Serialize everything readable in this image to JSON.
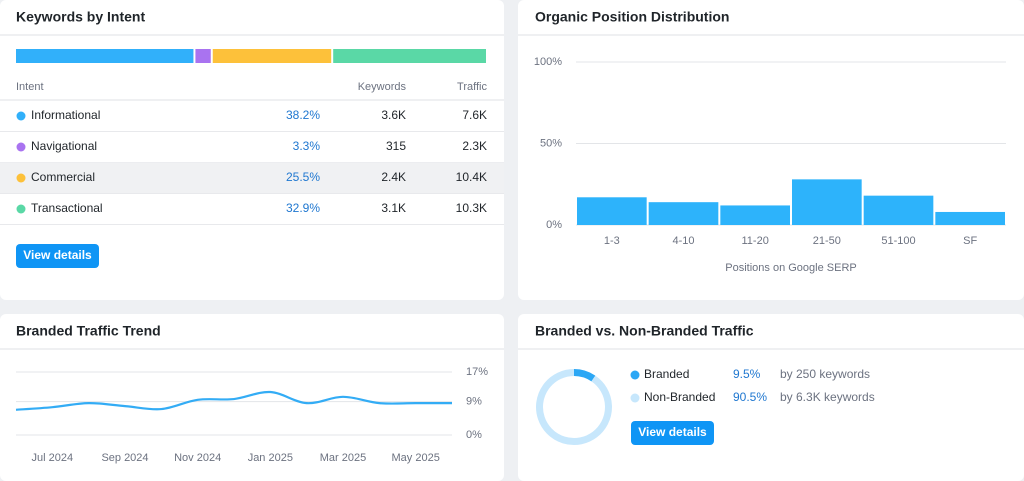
{
  "intent_panel": {
    "title": "Keywords by Intent",
    "columns": [
      "Intent",
      "Keywords",
      "Traffic"
    ],
    "rows": [
      {
        "name": "Informational",
        "color": "#31b0fa",
        "share": 38.2,
        "share_label": "38.2%",
        "keywords": "3.6K",
        "traffic": "7.6K"
      },
      {
        "name": "Navigational",
        "color": "#a973f0",
        "share": 3.3,
        "share_label": "3.3%",
        "keywords": "315",
        "traffic": "2.3K"
      },
      {
        "name": "Commercial",
        "color": "#fdc13a",
        "share": 25.5,
        "share_label": "25.5%",
        "keywords": "2.4K",
        "traffic": "10.4K"
      },
      {
        "name": "Transactional",
        "color": "#5ad8a6",
        "share": 32.9,
        "share_label": "32.9%",
        "keywords": "3.1K",
        "traffic": "10.3K"
      }
    ],
    "button": "View details"
  },
  "chart_data": [
    {
      "type": "bar",
      "title": "Organic Position Distribution",
      "categories": [
        "1-3",
        "4-10",
        "11-20",
        "21-50",
        "51-100",
        "SF"
      ],
      "values": [
        17,
        14,
        12,
        28,
        18,
        8
      ],
      "color": "#2db3fb",
      "ylim": [
        0,
        100
      ],
      "yticks": [
        {
          "value": 0,
          "label": "0%"
        },
        {
          "value": 50,
          "label": "50%"
        },
        {
          "value": 100,
          "label": "100%"
        }
      ],
      "xlabel": "Positions on Google SERP",
      "grid": true
    },
    {
      "type": "line",
      "title": "Branded Traffic Trend",
      "categories": [
        null,
        "Jul 2024",
        null,
        "Sep 2024",
        null,
        "Nov 2024",
        null,
        "Jan 2025",
        null,
        "Mar 2025",
        null,
        "May 2025",
        null
      ],
      "values": [
        6.8,
        7.5,
        8.6,
        7.8,
        7.0,
        9.5,
        9.7,
        11.6,
        8.6,
        10.3,
        8.6,
        8.6,
        8.6
      ],
      "color": "#33acf5",
      "ylim": [
        0,
        17
      ],
      "yticks": [
        {
          "value": 0,
          "label": "0%"
        },
        {
          "value": 9,
          "label": "9%"
        },
        {
          "value": 17,
          "label": "17%"
        }
      ],
      "grid": true
    },
    {
      "type": "pie",
      "title": "Branded vs. Non-Branded Traffic",
      "categories": [
        "Branded",
        "Non-Branded"
      ],
      "values": [
        9.5,
        90.5
      ],
      "value_labels": [
        "9.5%",
        "90.5%"
      ],
      "colors": [
        "#2ba7f5",
        "#c7e7fc"
      ],
      "notes": [
        "by 250 keywords",
        "by 6.3K keywords"
      ],
      "button": "View details"
    }
  ]
}
